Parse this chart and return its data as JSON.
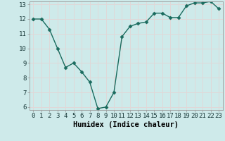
{
  "title": "",
  "xlabel": "Humidex (Indice chaleur)",
  "ylabel": "",
  "x_values": [
    0,
    1,
    2,
    3,
    4,
    5,
    6,
    7,
    8,
    9,
    10,
    11,
    12,
    13,
    14,
    15,
    16,
    17,
    18,
    19,
    20,
    21,
    22,
    23
  ],
  "y_values": [
    12.0,
    12.0,
    11.3,
    10.0,
    8.7,
    9.0,
    8.4,
    7.7,
    5.9,
    6.0,
    7.0,
    10.8,
    11.5,
    11.7,
    11.8,
    12.4,
    12.4,
    12.1,
    12.1,
    12.9,
    13.1,
    13.1,
    13.2,
    12.7
  ],
  "line_color": "#1a6b5e",
  "marker": "D",
  "marker_size": 2.5,
  "bg_color": "#ceeaea",
  "grid_color": "#e8f8f8",
  "ylim_min": 6,
  "ylim_max": 13,
  "yticks": [
    6,
    7,
    8,
    9,
    10,
    11,
    12,
    13
  ],
  "xticks": [
    0,
    1,
    2,
    3,
    4,
    5,
    6,
    7,
    8,
    9,
    10,
    11,
    12,
    13,
    14,
    15,
    16,
    17,
    18,
    19,
    20,
    21,
    22,
    23
  ],
  "tick_fontsize": 6.5,
  "label_fontsize": 7.5,
  "line_width": 1.0,
  "spine_color": "#999999",
  "grid_line_color": "#e0d8d8"
}
